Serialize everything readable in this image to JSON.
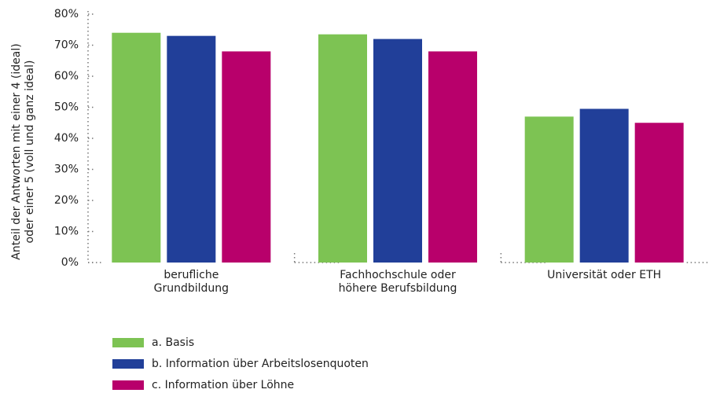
{
  "chart_data": {
    "type": "bar",
    "y_label": "Anteil der Antworten mit einer 4 (ideal)\noder einer 5 (voll und ganz ideal)",
    "categories": [
      "berufliche\nGrundbildung",
      "Fachhochschule oder\nhöhere Berufsbildung",
      "Universität oder ETH"
    ],
    "series": [
      {
        "name": "a. Basis",
        "color": "#7dc353",
        "values": [
          74,
          73.5,
          47
        ]
      },
      {
        "name": "b. Information über Arbeitslosenquoten",
        "color": "#213f99",
        "values": [
          73,
          72,
          49.5
        ]
      },
      {
        "name": "c. Information über Löhne",
        "color": "#b8006b",
        "values": [
          68,
          68,
          45
        ]
      }
    ],
    "ylim": [
      0,
      80
    ],
    "yticks": [
      {
        "value": 0,
        "label": "0%"
      },
      {
        "value": 10,
        "label": "10%"
      },
      {
        "value": 20,
        "label": "20%"
      },
      {
        "value": 30,
        "label": "30%"
      },
      {
        "value": 40,
        "label": "40%"
      },
      {
        "value": 50,
        "label": "50%"
      },
      {
        "value": 60,
        "label": "60%"
      },
      {
        "value": 70,
        "label": "70%"
      },
      {
        "value": 80,
        "label": "80%"
      }
    ],
    "legend": "bottom-left"
  }
}
